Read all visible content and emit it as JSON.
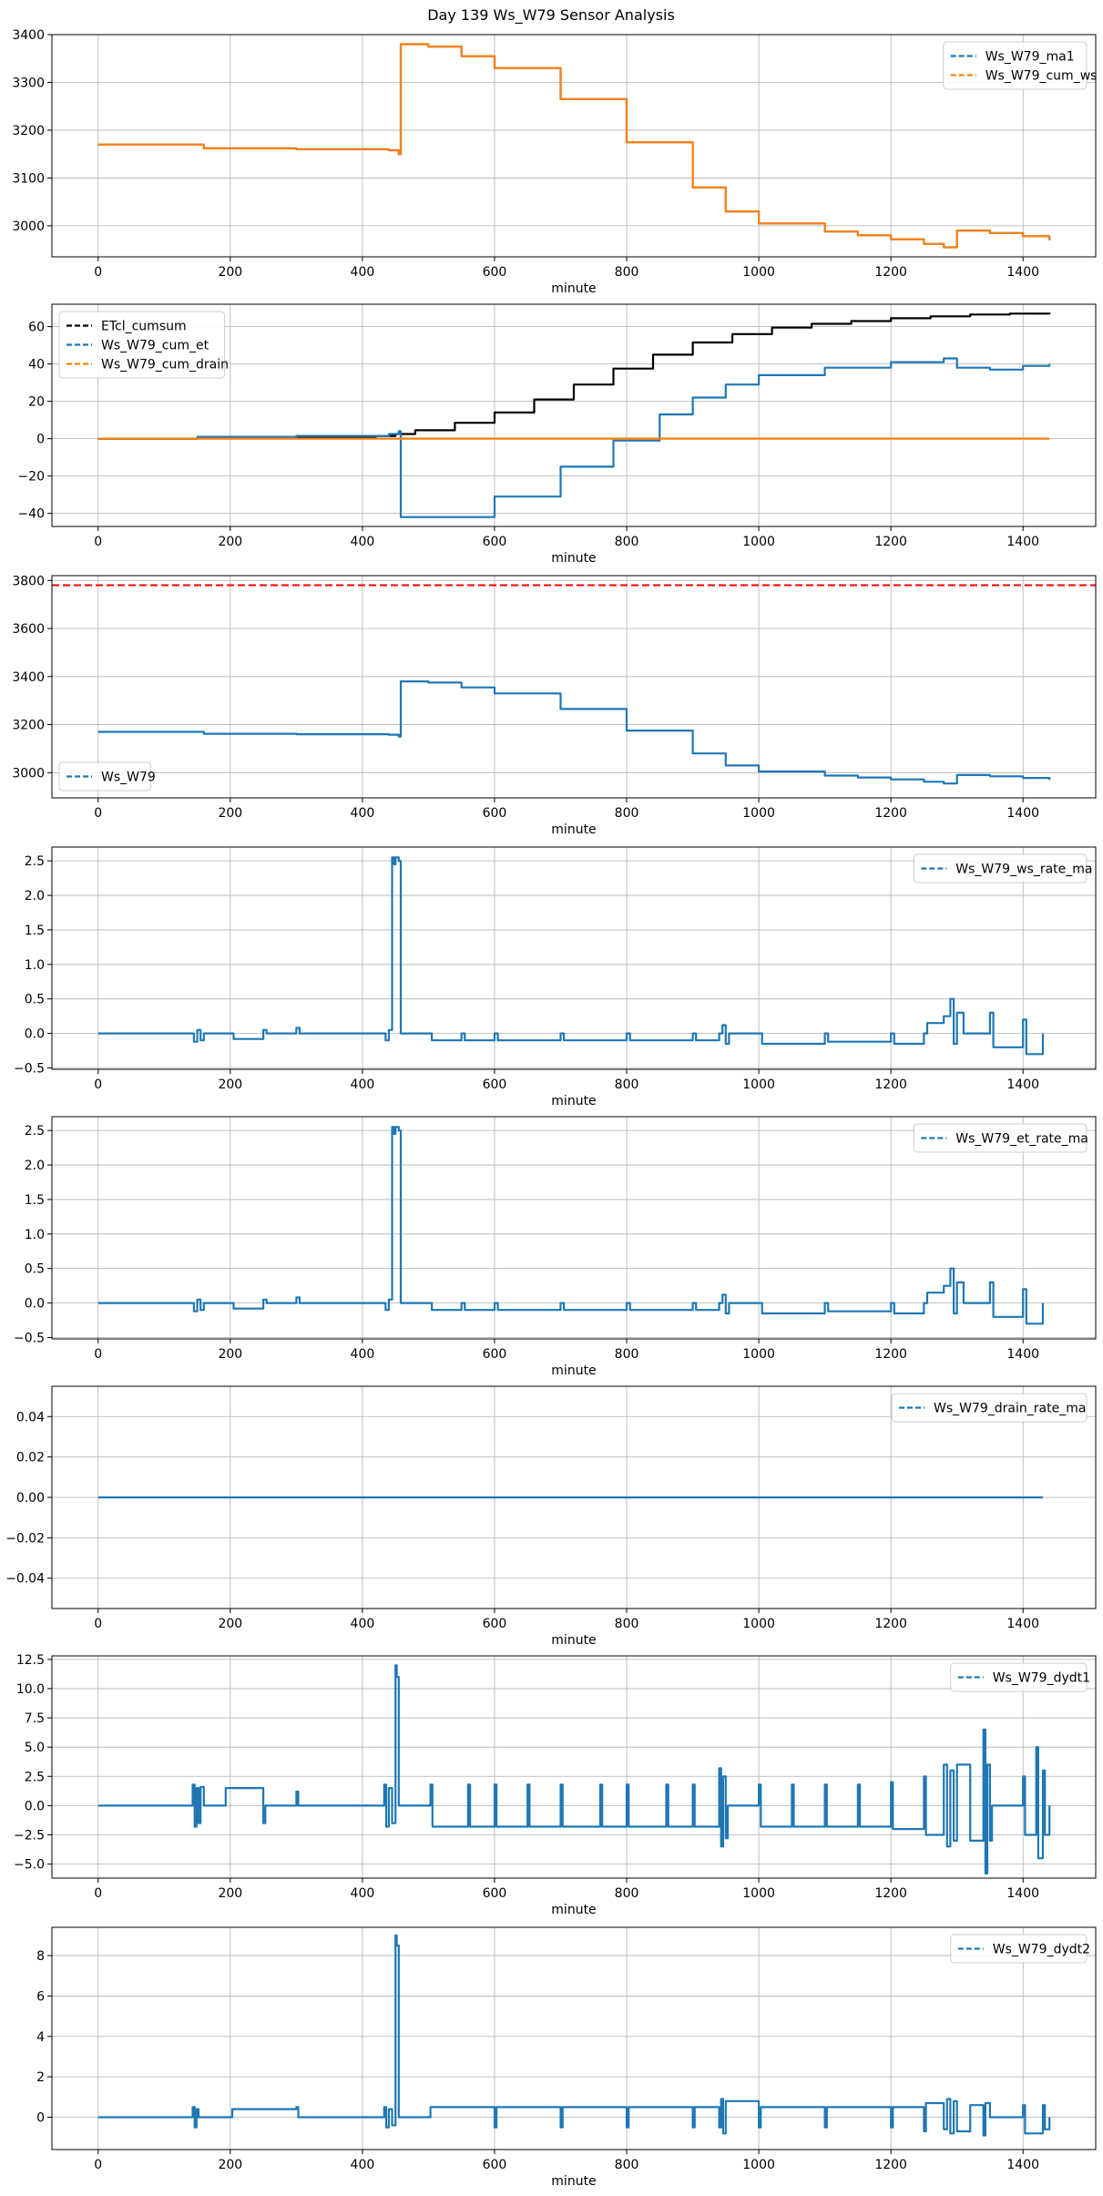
{
  "figure_title": "Day 139 Ws_W79 Sensor Analysis",
  "colors": {
    "blue": "#1f77b4",
    "orange": "#ff7f0e",
    "black": "#000000",
    "red": "#d62728",
    "grid": "#b0b0b0"
  },
  "chart_data": [
    {
      "type": "line",
      "xlabel": "minute",
      "xlim": [
        -70,
        1510
      ],
      "ylim": [
        2935,
        3400
      ],
      "xticks": [
        0,
        200,
        400,
        600,
        800,
        1000,
        1200,
        1400
      ],
      "yticks": [
        3000,
        3100,
        3200,
        3300,
        3400
      ],
      "grid": true,
      "legend_loc": "upper right",
      "series": [
        {
          "name": "Ws_W79_ma1",
          "color": "#1f77b4",
          "style": "dashed",
          "x": [
            0,
            140,
            160,
            300,
            440,
            455,
            458,
            470,
            500,
            550,
            600,
            700,
            800,
            900,
            950,
            1000,
            1100,
            1150,
            1200,
            1250,
            1280,
            1300,
            1350,
            1400,
            1440
          ],
          "y": [
            3170,
            3170,
            3162,
            3160,
            3158,
            3150,
            3380,
            3380,
            3375,
            3355,
            3330,
            3265,
            3175,
            3080,
            3030,
            3005,
            2988,
            2980,
            2972,
            2962,
            2955,
            2990,
            2985,
            2978,
            2970
          ]
        },
        {
          "name": "Ws_W79_cum_ws",
          "color": "#ff7f0e",
          "style": "dashed",
          "x": [
            0,
            140,
            160,
            300,
            440,
            455,
            458,
            470,
            500,
            550,
            600,
            700,
            800,
            900,
            950,
            1000,
            1100,
            1150,
            1200,
            1250,
            1280,
            1300,
            1350,
            1400,
            1440
          ],
          "y": [
            3170,
            3170,
            3162,
            3160,
            3158,
            3150,
            3380,
            3380,
            3375,
            3355,
            3330,
            3265,
            3175,
            3080,
            3030,
            3005,
            2988,
            2980,
            2972,
            2962,
            2955,
            2990,
            2985,
            2978,
            2970
          ]
        }
      ]
    },
    {
      "type": "line",
      "xlabel": "minute",
      "xlim": [
        -70,
        1510
      ],
      "ylim": [
        -47,
        72
      ],
      "xticks": [
        0,
        200,
        400,
        600,
        800,
        1000,
        1200,
        1400
      ],
      "yticks": [
        -40,
        -20,
        0,
        20,
        40,
        60
      ],
      "grid": true,
      "legend_loc": "upper left",
      "series": [
        {
          "name": "ETcl_cumsum",
          "color": "#000000",
          "style": "dashed",
          "x": [
            0,
            150,
            300,
            420,
            450,
            480,
            540,
            600,
            660,
            720,
            780,
            840,
            900,
            960,
            1020,
            1080,
            1140,
            1200,
            1260,
            1320,
            1380,
            1440
          ],
          "y": [
            0,
            0.2,
            0.6,
            1.5,
            2.5,
            4.5,
            8.5,
            14,
            21,
            29,
            37.5,
            45,
            51.5,
            56,
            59.5,
            61.5,
            63,
            64.5,
            65.5,
            66.5,
            67,
            67.5
          ]
        },
        {
          "name": "Ws_W79_cum_et",
          "color": "#1f77b4",
          "style": "dashed",
          "x": [
            0,
            150,
            300,
            440,
            455,
            458,
            500,
            600,
            700,
            780,
            850,
            900,
            950,
            1000,
            1100,
            1200,
            1280,
            1300,
            1350,
            1400,
            1440
          ],
          "y": [
            0,
            1,
            1.5,
            2.5,
            4,
            -42,
            -42,
            -31,
            -15,
            -1,
            13,
            22,
            29,
            34,
            38,
            41,
            43,
            38,
            37,
            39,
            40
          ]
        },
        {
          "name": "Ws_W79_cum_drain",
          "color": "#ff7f0e",
          "style": "dashed",
          "x": [
            0,
            1440
          ],
          "y": [
            0,
            0
          ]
        }
      ]
    },
    {
      "type": "line",
      "xlabel": "minute",
      "xlim": [
        -70,
        1510
      ],
      "ylim": [
        2895,
        3820
      ],
      "xticks": [
        0,
        200,
        400,
        600,
        800,
        1000,
        1200,
        1400
      ],
      "yticks": [
        3000,
        3200,
        3400,
        3600,
        3800
      ],
      "grid": true,
      "legend_loc": "lower left",
      "hline": {
        "y": 3780,
        "color": "#ff0000"
      },
      "series": [
        {
          "name": "Ws_W79",
          "color": "#1f77b4",
          "style": "dashed",
          "x": [
            0,
            140,
            160,
            300,
            440,
            455,
            458,
            470,
            500,
            550,
            600,
            700,
            800,
            900,
            950,
            1000,
            1100,
            1150,
            1200,
            1250,
            1280,
            1300,
            1350,
            1400,
            1440
          ],
          "y": [
            3170,
            3170,
            3162,
            3160,
            3158,
            3150,
            3380,
            3380,
            3375,
            3355,
            3330,
            3265,
            3175,
            3080,
            3030,
            3005,
            2988,
            2980,
            2972,
            2962,
            2955,
            2990,
            2985,
            2978,
            2970
          ]
        }
      ]
    },
    {
      "type": "line",
      "xlabel": "minute",
      "xlim": [
        -70,
        1510
      ],
      "ylim": [
        -0.52,
        2.7
      ],
      "xticks": [
        0,
        200,
        400,
        600,
        800,
        1000,
        1200,
        1400
      ],
      "yticks": [
        -0.5,
        0.0,
        0.5,
        1.0,
        1.5,
        2.0,
        2.5
      ],
      "tick_decimals": 1,
      "grid": true,
      "legend_loc": "upper right",
      "series": [
        {
          "name": "Ws_W79_ws_rate_ma",
          "color": "#1f77b4",
          "style": "dashed",
          "x": [
            0,
            140,
            145,
            150,
            155,
            160,
            200,
            205,
            250,
            255,
            300,
            305,
            430,
            435,
            440,
            445,
            448,
            450,
            455,
            458,
            460,
            500,
            505,
            550,
            555,
            600,
            605,
            700,
            705,
            800,
            805,
            900,
            905,
            940,
            945,
            950,
            955,
            1000,
            1005,
            1100,
            1105,
            1200,
            1205,
            1250,
            1255,
            1280,
            1290,
            1295,
            1300,
            1310,
            1350,
            1355,
            1400,
            1405,
            1430
          ],
          "y": [
            0,
            0,
            -0.12,
            0.05,
            -0.1,
            0,
            0,
            -0.08,
            0.05,
            0,
            0.08,
            0,
            0,
            -0.1,
            0.05,
            2.55,
            2.45,
            2.55,
            2.5,
            0,
            0,
            0,
            -0.1,
            0,
            -0.1,
            0,
            -0.1,
            0,
            -0.1,
            0,
            -0.1,
            0,
            -0.1,
            0,
            0.12,
            -0.15,
            0,
            0,
            -0.15,
            0,
            -0.12,
            0,
            -0.15,
            0,
            0.15,
            0.25,
            0.5,
            -0.15,
            0.3,
            0,
            0.3,
            -0.2,
            0.2,
            -0.3,
            0
          ]
        }
      ]
    },
    {
      "type": "line",
      "xlabel": "minute",
      "xlim": [
        -70,
        1510
      ],
      "ylim": [
        -0.52,
        2.7
      ],
      "xticks": [
        0,
        200,
        400,
        600,
        800,
        1000,
        1200,
        1400
      ],
      "yticks": [
        -0.5,
        0.0,
        0.5,
        1.0,
        1.5,
        2.0,
        2.5
      ],
      "tick_decimals": 1,
      "grid": true,
      "legend_loc": "upper right",
      "series": [
        {
          "name": "Ws_W79_et_rate_ma",
          "color": "#1f77b4",
          "style": "dashed",
          "x": [
            0,
            140,
            145,
            150,
            155,
            160,
            200,
            205,
            250,
            255,
            300,
            305,
            430,
            435,
            440,
            445,
            448,
            450,
            455,
            458,
            460,
            500,
            505,
            550,
            555,
            600,
            605,
            700,
            705,
            800,
            805,
            900,
            905,
            940,
            945,
            950,
            955,
            1000,
            1005,
            1100,
            1105,
            1200,
            1205,
            1250,
            1255,
            1280,
            1290,
            1295,
            1300,
            1310,
            1350,
            1355,
            1400,
            1405,
            1430
          ],
          "y": [
            0,
            0,
            -0.12,
            0.05,
            -0.1,
            0,
            0,
            -0.08,
            0.05,
            0,
            0.08,
            0,
            0,
            -0.1,
            0.05,
            2.55,
            2.45,
            2.55,
            2.5,
            0,
            0,
            0,
            -0.1,
            0,
            -0.1,
            0,
            -0.1,
            0,
            -0.1,
            0,
            -0.1,
            0,
            -0.1,
            0,
            0.12,
            -0.15,
            0,
            0,
            -0.15,
            0,
            -0.12,
            0,
            -0.15,
            0,
            0.15,
            0.25,
            0.5,
            -0.15,
            0.3,
            0,
            0.3,
            -0.2,
            0.2,
            -0.3,
            0
          ]
        }
      ]
    },
    {
      "type": "line",
      "xlabel": "minute",
      "xlim": [
        -70,
        1510
      ],
      "ylim": [
        -0.055,
        0.055
      ],
      "xticks": [
        0,
        200,
        400,
        600,
        800,
        1000,
        1200,
        1400
      ],
      "yticks": [
        -0.04,
        -0.02,
        0.0,
        0.02,
        0.04
      ],
      "tick_decimals": 2,
      "grid": true,
      "legend_loc": "upper right",
      "series": [
        {
          "name": "Ws_W79_drain_rate_ma",
          "color": "#1f77b4",
          "style": "dashed",
          "x": [
            0,
            1430
          ],
          "y": [
            0,
            0
          ]
        }
      ]
    },
    {
      "type": "line",
      "xlabel": "minute",
      "xlim": [
        -70,
        1510
      ],
      "ylim": [
        -6.2,
        12.8
      ],
      "xticks": [
        0,
        200,
        400,
        600,
        800,
        1000,
        1200,
        1400
      ],
      "yticks": [
        -5.0,
        -2.5,
        0.0,
        2.5,
        5.0,
        7.5,
        10.0,
        12.5
      ],
      "tick_decimals": 1,
      "grid": true,
      "legend_loc": "upper right",
      "series": [
        {
          "name": "Ws_W79_dydt1",
          "color": "#1f77b4",
          "style": "dashed",
          "x": [
            0,
            140,
            143,
            146,
            149,
            152,
            155,
            160,
            190,
            193,
            250,
            253,
            300,
            303,
            430,
            433,
            436,
            440,
            445,
            450,
            452,
            455,
            458,
            460,
            500,
            503,
            506,
            560,
            563,
            600,
            603,
            650,
            653,
            700,
            703,
            760,
            763,
            800,
            803,
            860,
            863,
            900,
            903,
            940,
            943,
            946,
            950,
            953,
            1000,
            1003,
            1050,
            1053,
            1100,
            1103,
            1150,
            1153,
            1200,
            1203,
            1250,
            1253,
            1280,
            1285,
            1290,
            1295,
            1300,
            1320,
            1340,
            1343,
            1346,
            1350,
            1353,
            1400,
            1403,
            1420,
            1423,
            1430,
            1433,
            1440
          ],
          "y": [
            0,
            0,
            1.8,
            -1.8,
            1.5,
            -1.5,
            1.6,
            0,
            0,
            1.5,
            -1.5,
            0,
            1.2,
            0,
            0,
            1.8,
            -1.8,
            1.5,
            -1.5,
            12,
            11,
            0,
            0,
            0,
            0,
            1.8,
            -1.8,
            1.8,
            -1.8,
            1.8,
            -1.8,
            1.8,
            -1.8,
            1.8,
            -1.8,
            1.8,
            -1.8,
            1.8,
            -1.8,
            1.8,
            -1.8,
            1.8,
            -1.8,
            3.2,
            -3.5,
            2.5,
            -2.8,
            0,
            1.8,
            -1.8,
            1.8,
            -1.8,
            1.8,
            -1.8,
            1.8,
            -1.8,
            2.0,
            -2.0,
            2.5,
            -2.5,
            3.5,
            -3.5,
            3.0,
            -3.0,
            3.5,
            -3.0,
            6.5,
            -5.8,
            3.5,
            -3.0,
            0,
            2.5,
            -2.5,
            5.0,
            -4.5,
            3.0,
            -2.5,
            0
          ]
        }
      ]
    },
    {
      "type": "line",
      "xlabel": "minute",
      "xlim": [
        -70,
        1510
      ],
      "ylim": [
        -1.6,
        9.4
      ],
      "xticks": [
        0,
        200,
        400,
        600,
        800,
        1000,
        1200,
        1400
      ],
      "yticks": [
        0,
        2,
        4,
        6,
        8
      ],
      "grid": true,
      "legend_loc": "upper right",
      "series": [
        {
          "name": "Ws_W79_dydt2",
          "color": "#1f77b4",
          "style": "dashed",
          "x": [
            0,
            140,
            143,
            146,
            149,
            152,
            200,
            203,
            300,
            303,
            430,
            433,
            436,
            440,
            445,
            450,
            452,
            455,
            458,
            460,
            500,
            503,
            600,
            603,
            700,
            703,
            800,
            803,
            900,
            903,
            940,
            943,
            946,
            950,
            1000,
            1003,
            1100,
            1103,
            1200,
            1203,
            1250,
            1253,
            1280,
            1285,
            1290,
            1295,
            1300,
            1320,
            1340,
            1343,
            1350,
            1400,
            1403,
            1430,
            1433,
            1440
          ],
          "y": [
            0,
            0,
            0.5,
            -0.5,
            0.4,
            0,
            0,
            0.4,
            0.5,
            0,
            0,
            0.5,
            -0.5,
            0.4,
            -0.4,
            9,
            8.5,
            0,
            0,
            0,
            0,
            0.5,
            -0.5,
            0.5,
            -0.5,
            0.5,
            -0.5,
            0.5,
            -0.5,
            0.5,
            -0.5,
            0.9,
            -0.8,
            0.8,
            -0.5,
            0.5,
            -0.5,
            0.5,
            -0.5,
            0.5,
            -0.7,
            0.7,
            -0.6,
            0.9,
            -0.8,
            0.8,
            -0.7,
            0.6,
            -0.9,
            0.7,
            0,
            0.6,
            -0.8,
            0.6,
            -0.6,
            0
          ]
        }
      ]
    }
  ]
}
